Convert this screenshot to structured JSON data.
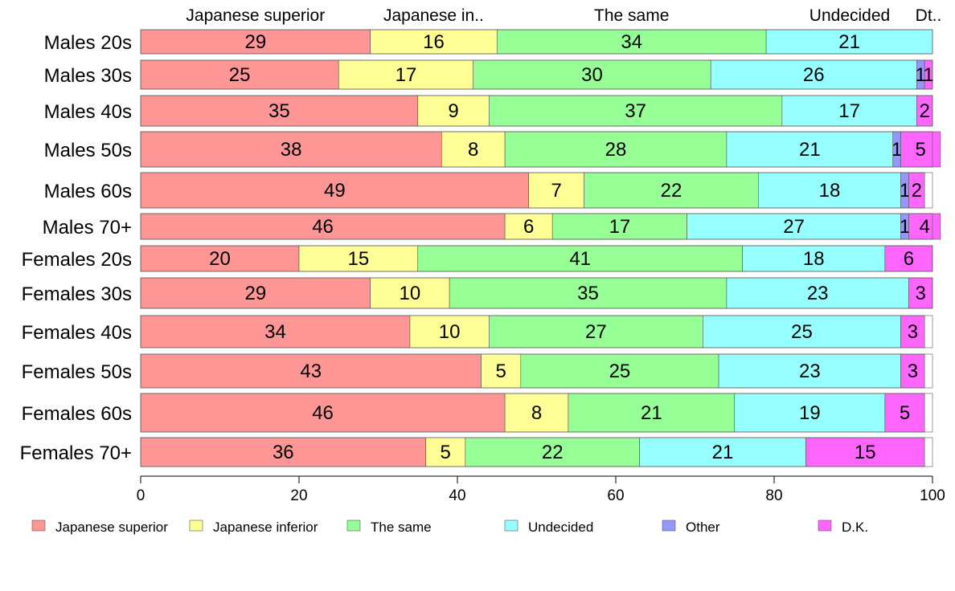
{
  "chart_data": {
    "type": "bar",
    "orientation": "horizontal",
    "stacked": true,
    "categories": [
      "Males 20s",
      "Males 30s",
      "Males 40s",
      "Males 50s",
      "Males 60s",
      "Males 70+",
      "Females 20s",
      "Females 30s",
      "Females 40s",
      "Females 50s",
      "Females 60s",
      "Females 70+"
    ],
    "series": [
      {
        "name": "Japanese superior",
        "color": "#FF9696",
        "values": [
          29,
          25,
          35,
          38,
          49,
          46,
          20,
          29,
          34,
          43,
          46,
          36
        ]
      },
      {
        "name": "Japanese inferior",
        "color": "#FFFF96",
        "values": [
          16,
          17,
          9,
          8,
          7,
          6,
          15,
          10,
          10,
          5,
          8,
          5
        ]
      },
      {
        "name": "The same",
        "color": "#96FF96",
        "values": [
          34,
          30,
          37,
          28,
          22,
          17,
          41,
          35,
          27,
          25,
          21,
          22
        ]
      },
      {
        "name": "Undecided",
        "color": "#96FFFF",
        "values": [
          21,
          26,
          17,
          21,
          18,
          27,
          18,
          23,
          25,
          23,
          19,
          21
        ]
      },
      {
        "name": "Other",
        "color": "#9696FF",
        "values": [
          0,
          1,
          0,
          1,
          1,
          1,
          0,
          0,
          0,
          0,
          0,
          0
        ]
      },
      {
        "name": "D.K.",
        "color": "#FF66FF",
        "values": [
          0,
          1,
          2,
          5,
          2,
          4,
          6,
          3,
          3,
          3,
          5,
          15
        ]
      }
    ],
    "top_labels": [
      "Japanese superior",
      "Japanese in..",
      "The same",
      "Undecided",
      "Dt.."
    ],
    "xticks": [
      "0",
      "20",
      "40",
      "60",
      "80",
      "100"
    ],
    "xlim": [
      0,
      100
    ],
    "legend_position": "bottom",
    "grid": false
  }
}
